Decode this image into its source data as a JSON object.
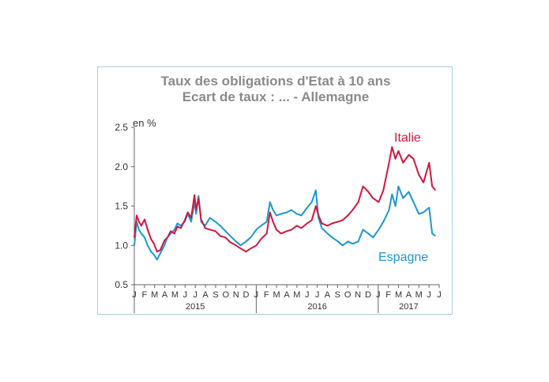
{
  "chart_data": {
    "type": "line",
    "title": "Taux des obligations d'Etat à 10 ans",
    "subtitle": "Ecart de taux : ... - Allemagne",
    "ylabel": "en %",
    "ylim": [
      0.5,
      2.5
    ],
    "yticks": [
      "0.5",
      "1.0",
      "1.5",
      "2.0",
      "2.5"
    ],
    "grid": false,
    "month_labels": [
      "J",
      "F",
      "M",
      "A",
      "M",
      "J",
      "J",
      "A",
      "S",
      "O",
      "N",
      "D",
      "J",
      "F",
      "M",
      "A",
      "M",
      "J",
      "J",
      "A",
      "S",
      "O",
      "N",
      "D",
      "J",
      "F",
      "M",
      "A",
      "M",
      "J",
      "J"
    ],
    "year_labels": [
      "2015",
      "2016",
      "2017"
    ],
    "series": [
      {
        "name": "Italie",
        "color": "#d0173c",
        "points": [
          [
            "2015-01-01",
            1.1
          ],
          [
            "2015-01-08",
            1.38
          ],
          [
            "2015-01-15",
            1.3
          ],
          [
            "2015-01-22",
            1.25
          ],
          [
            "2015-02-01",
            1.33
          ],
          [
            "2015-02-10",
            1.2
          ],
          [
            "2015-02-20",
            1.08
          ],
          [
            "2015-03-01",
            1.02
          ],
          [
            "2015-03-10",
            0.92
          ],
          [
            "2015-03-20",
            0.94
          ],
          [
            "2015-04-01",
            1.06
          ],
          [
            "2015-04-10",
            1.1
          ],
          [
            "2015-04-20",
            1.18
          ],
          [
            "2015-05-01",
            1.15
          ],
          [
            "2015-05-10",
            1.24
          ],
          [
            "2015-05-20",
            1.22
          ],
          [
            "2015-06-01",
            1.32
          ],
          [
            "2015-06-10",
            1.42
          ],
          [
            "2015-06-20",
            1.35
          ],
          [
            "2015-06-30",
            1.64
          ],
          [
            "2015-07-05",
            1.45
          ],
          [
            "2015-07-12",
            1.6
          ],
          [
            "2015-07-20",
            1.33
          ],
          [
            "2015-08-01",
            1.22
          ],
          [
            "2015-08-15",
            1.2
          ],
          [
            "2015-09-01",
            1.18
          ],
          [
            "2015-09-15",
            1.12
          ],
          [
            "2015-10-01",
            1.1
          ],
          [
            "2015-10-15",
            1.04
          ],
          [
            "2015-11-01",
            1.0
          ],
          [
            "2015-11-15",
            0.96
          ],
          [
            "2015-12-01",
            0.92
          ],
          [
            "2015-12-15",
            0.96
          ],
          [
            "2016-01-01",
            1.0
          ],
          [
            "2016-01-15",
            1.08
          ],
          [
            "2016-02-01",
            1.15
          ],
          [
            "2016-02-11",
            1.42
          ],
          [
            "2016-02-20",
            1.3
          ],
          [
            "2016-03-01",
            1.2
          ],
          [
            "2016-03-15",
            1.15
          ],
          [
            "2016-04-01",
            1.18
          ],
          [
            "2016-04-15",
            1.2
          ],
          [
            "2016-05-01",
            1.25
          ],
          [
            "2016-05-15",
            1.22
          ],
          [
            "2016-06-01",
            1.28
          ],
          [
            "2016-06-15",
            1.32
          ],
          [
            "2016-06-27",
            1.5
          ],
          [
            "2016-07-05",
            1.38
          ],
          [
            "2016-07-15",
            1.28
          ],
          [
            "2016-08-01",
            1.25
          ],
          [
            "2016-08-15",
            1.28
          ],
          [
            "2016-09-01",
            1.3
          ],
          [
            "2016-09-15",
            1.32
          ],
          [
            "2016-10-01",
            1.38
          ],
          [
            "2016-10-15",
            1.45
          ],
          [
            "2016-11-01",
            1.55
          ],
          [
            "2016-11-15",
            1.75
          ],
          [
            "2016-12-01",
            1.68
          ],
          [
            "2016-12-15",
            1.6
          ],
          [
            "2017-01-01",
            1.55
          ],
          [
            "2017-01-15",
            1.7
          ],
          [
            "2017-02-01",
            2.05
          ],
          [
            "2017-02-10",
            2.25
          ],
          [
            "2017-02-20",
            2.1
          ],
          [
            "2017-03-01",
            2.2
          ],
          [
            "2017-03-15",
            2.05
          ],
          [
            "2017-04-01",
            2.15
          ],
          [
            "2017-04-15",
            2.1
          ],
          [
            "2017-05-01",
            1.9
          ],
          [
            "2017-05-15",
            1.8
          ],
          [
            "2017-06-01",
            2.05
          ],
          [
            "2017-06-10",
            1.75
          ],
          [
            "2017-06-20",
            1.7
          ]
        ]
      },
      {
        "name": "Espagne",
        "color": "#1b97d0",
        "points": [
          [
            "2015-01-01",
            1.0
          ],
          [
            "2015-01-08",
            1.3
          ],
          [
            "2015-01-15",
            1.2
          ],
          [
            "2015-01-22",
            1.15
          ],
          [
            "2015-02-01",
            1.1
          ],
          [
            "2015-02-10",
            1.0
          ],
          [
            "2015-02-20",
            0.92
          ],
          [
            "2015-03-01",
            0.88
          ],
          [
            "2015-03-10",
            0.82
          ],
          [
            "2015-03-20",
            0.9
          ],
          [
            "2015-04-01",
            1.0
          ],
          [
            "2015-04-10",
            1.1
          ],
          [
            "2015-04-20",
            1.15
          ],
          [
            "2015-05-01",
            1.2
          ],
          [
            "2015-05-10",
            1.28
          ],
          [
            "2015-05-20",
            1.25
          ],
          [
            "2015-06-01",
            1.3
          ],
          [
            "2015-06-10",
            1.4
          ],
          [
            "2015-06-20",
            1.3
          ],
          [
            "2015-06-30",
            1.55
          ],
          [
            "2015-07-05",
            1.4
          ],
          [
            "2015-07-12",
            1.63
          ],
          [
            "2015-07-20",
            1.3
          ],
          [
            "2015-08-01",
            1.25
          ],
          [
            "2015-08-15",
            1.35
          ],
          [
            "2015-09-01",
            1.3
          ],
          [
            "2015-09-15",
            1.25
          ],
          [
            "2015-10-01",
            1.18
          ],
          [
            "2015-10-15",
            1.12
          ],
          [
            "2015-11-01",
            1.05
          ],
          [
            "2015-11-15",
            1.0
          ],
          [
            "2015-12-01",
            1.05
          ],
          [
            "2015-12-15",
            1.1
          ],
          [
            "2016-01-01",
            1.2
          ],
          [
            "2016-01-15",
            1.25
          ],
          [
            "2016-02-01",
            1.3
          ],
          [
            "2016-02-11",
            1.55
          ],
          [
            "2016-02-20",
            1.45
          ],
          [
            "2016-03-01",
            1.38
          ],
          [
            "2016-03-15",
            1.4
          ],
          [
            "2016-04-01",
            1.42
          ],
          [
            "2016-04-15",
            1.45
          ],
          [
            "2016-05-01",
            1.4
          ],
          [
            "2016-05-15",
            1.38
          ],
          [
            "2016-06-01",
            1.48
          ],
          [
            "2016-06-15",
            1.55
          ],
          [
            "2016-06-27",
            1.7
          ],
          [
            "2016-07-05",
            1.35
          ],
          [
            "2016-07-15",
            1.22
          ],
          [
            "2016-08-01",
            1.15
          ],
          [
            "2016-08-15",
            1.1
          ],
          [
            "2016-09-01",
            1.05
          ],
          [
            "2016-09-15",
            1.0
          ],
          [
            "2016-10-01",
            1.05
          ],
          [
            "2016-10-15",
            1.02
          ],
          [
            "2016-11-01",
            1.05
          ],
          [
            "2016-11-15",
            1.2
          ],
          [
            "2016-12-01",
            1.15
          ],
          [
            "2016-12-15",
            1.1
          ],
          [
            "2017-01-01",
            1.2
          ],
          [
            "2017-01-15",
            1.3
          ],
          [
            "2017-02-01",
            1.45
          ],
          [
            "2017-02-10",
            1.65
          ],
          [
            "2017-02-20",
            1.5
          ],
          [
            "2017-03-01",
            1.75
          ],
          [
            "2017-03-15",
            1.6
          ],
          [
            "2017-04-01",
            1.68
          ],
          [
            "2017-04-15",
            1.55
          ],
          [
            "2017-05-01",
            1.4
          ],
          [
            "2017-05-15",
            1.42
          ],
          [
            "2017-06-01",
            1.48
          ],
          [
            "2017-06-10",
            1.15
          ],
          [
            "2017-06-20",
            1.12
          ]
        ]
      }
    ]
  }
}
